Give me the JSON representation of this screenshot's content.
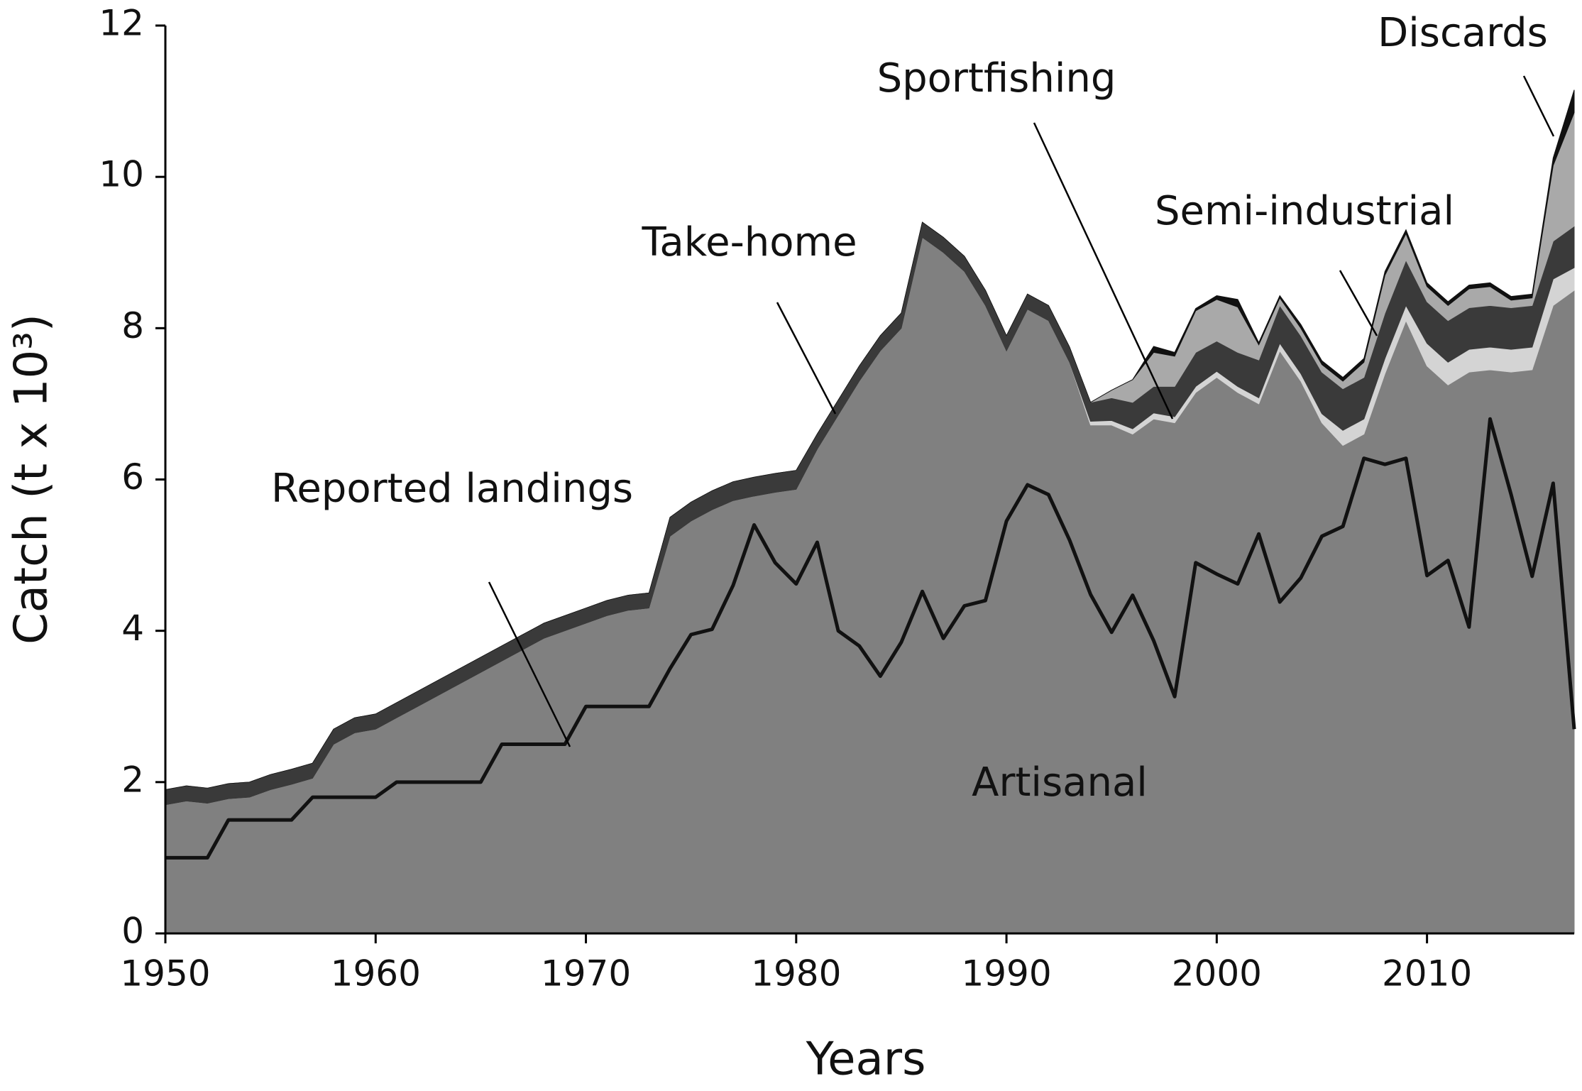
{
  "chart_data": {
    "type": "area",
    "stacked": true,
    "x_label": "Years",
    "y_label": "Catch (t x 10³)",
    "x": [
      1950,
      1951,
      1952,
      1953,
      1954,
      1955,
      1956,
      1957,
      1958,
      1959,
      1960,
      1961,
      1962,
      1963,
      1964,
      1965,
      1966,
      1967,
      1968,
      1969,
      1970,
      1971,
      1972,
      1973,
      1974,
      1975,
      1976,
      1977,
      1978,
      1979,
      1980,
      1981,
      1982,
      1983,
      1984,
      1985,
      1986,
      1987,
      1988,
      1989,
      1990,
      1991,
      1992,
      1993,
      1994,
      1995,
      1996,
      1997,
      1998,
      1999,
      2000,
      2001,
      2002,
      2003,
      2004,
      2005,
      2006,
      2007,
      2008,
      2009,
      2010,
      2011,
      2012,
      2013,
      2014,
      2015,
      2016,
      2017
    ],
    "xlim": [
      1950,
      2017
    ],
    "xticks": [
      1950,
      1960,
      1970,
      1980,
      1990,
      2000,
      2010
    ],
    "ylim": [
      0,
      12
    ],
    "yticks": [
      0,
      2,
      4,
      6,
      8,
      10,
      12
    ],
    "grid": false,
    "series": [
      {
        "name": "Artisanal",
        "color": "#808080",
        "values": [
          1.7,
          1.75,
          1.72,
          1.78,
          1.8,
          1.9,
          1.97,
          2.05,
          2.5,
          2.65,
          2.7,
          2.85,
          3.0,
          3.15,
          3.3,
          3.45,
          3.6,
          3.75,
          3.9,
          4.0,
          4.1,
          4.2,
          4.27,
          4.3,
          5.25,
          5.45,
          5.6,
          5.72,
          5.78,
          5.83,
          5.87,
          6.4,
          6.85,
          7.3,
          7.7,
          8.0,
          9.2,
          9.0,
          8.75,
          8.3,
          7.7,
          8.25,
          8.1,
          7.55,
          6.72,
          6.72,
          6.6,
          6.8,
          6.75,
          7.15,
          7.35,
          7.15,
          7.0,
          7.7,
          7.3,
          6.75,
          6.45,
          6.6,
          7.4,
          8.1,
          7.5,
          7.25,
          7.42,
          7.45,
          7.42,
          7.45,
          8.3,
          8.5
        ]
      },
      {
        "name": "Sportfishing",
        "color": "#d4d4d4",
        "values": [
          0,
          0,
          0,
          0,
          0,
          0,
          0,
          0,
          0,
          0,
          0,
          0,
          0,
          0,
          0,
          0,
          0,
          0,
          0,
          0,
          0,
          0,
          0,
          0,
          0,
          0,
          0,
          0,
          0,
          0,
          0,
          0,
          0,
          0,
          0,
          0,
          0,
          0,
          0,
          0,
          0,
          0,
          0,
          0,
          0.05,
          0.06,
          0.07,
          0.08,
          0.08,
          0.08,
          0.08,
          0.08,
          0.08,
          0.1,
          0.1,
          0.12,
          0.2,
          0.2,
          0.2,
          0.2,
          0.3,
          0.3,
          0.3,
          0.3,
          0.3,
          0.3,
          0.35,
          0.3
        ]
      },
      {
        "name": "Take-home",
        "color": "#3a3a3a",
        "values": [
          0.2,
          0.2,
          0.2,
          0.2,
          0.2,
          0.2,
          0.2,
          0.2,
          0.2,
          0.2,
          0.2,
          0.2,
          0.2,
          0.2,
          0.2,
          0.2,
          0.2,
          0.2,
          0.2,
          0.2,
          0.2,
          0.2,
          0.2,
          0.2,
          0.25,
          0.25,
          0.25,
          0.25,
          0.25,
          0.25,
          0.25,
          0.2,
          0.2,
          0.2,
          0.2,
          0.2,
          0.2,
          0.2,
          0.2,
          0.2,
          0.2,
          0.2,
          0.2,
          0.2,
          0.25,
          0.3,
          0.35,
          0.35,
          0.4,
          0.45,
          0.4,
          0.45,
          0.5,
          0.5,
          0.5,
          0.55,
          0.55,
          0.55,
          0.6,
          0.6,
          0.55,
          0.55,
          0.55,
          0.55,
          0.55,
          0.55,
          0.5,
          0.55
        ]
      },
      {
        "name": "Semi-industrial",
        "color": "#a9a9a9",
        "values": [
          0,
          0,
          0,
          0,
          0,
          0,
          0,
          0,
          0,
          0,
          0,
          0,
          0,
          0,
          0,
          0,
          0,
          0,
          0,
          0,
          0,
          0,
          0,
          0,
          0,
          0,
          0,
          0,
          0,
          0,
          0,
          0,
          0,
          0,
          0,
          0,
          0,
          0,
          0,
          0,
          0,
          0,
          0,
          0,
          0,
          0.1,
          0.3,
          0.45,
          0.4,
          0.55,
          0.55,
          0.6,
          0.2,
          0.1,
          0.1,
          0.1,
          0.1,
          0.2,
          0.5,
          0.35,
          0.2,
          0.2,
          0.25,
          0.25,
          0.1,
          0.1,
          1.0,
          1.5
        ]
      },
      {
        "name": "Discards",
        "color": "#111111",
        "values": [
          0,
          0,
          0,
          0,
          0,
          0,
          0,
          0,
          0,
          0,
          0,
          0,
          0,
          0,
          0,
          0,
          0,
          0,
          0,
          0,
          0,
          0,
          0,
          0,
          0,
          0,
          0,
          0,
          0,
          0,
          0,
          0,
          0,
          0,
          0,
          0,
          0,
          0,
          0,
          0,
          0,
          0,
          0,
          0,
          0,
          0,
          0,
          0.08,
          0.05,
          0.03,
          0.05,
          0.1,
          0.03,
          0.03,
          0.05,
          0.05,
          0.05,
          0.05,
          0.05,
          0.05,
          0.05,
          0.05,
          0.05,
          0.05,
          0.05,
          0.05,
          0.1,
          0.3
        ]
      }
    ],
    "lines": [
      {
        "name": "Reported landings",
        "color": "#111111",
        "values": [
          1.0,
          1.0,
          1.0,
          1.5,
          1.5,
          1.5,
          1.5,
          1.8,
          1.8,
          1.8,
          1.8,
          2.0,
          2.0,
          2.0,
          2.0,
          2.0,
          2.5,
          2.5,
          2.5,
          2.5,
          3.0,
          3.0,
          3.0,
          3.0,
          3.5,
          3.95,
          4.02,
          4.6,
          5.4,
          4.9,
          4.62,
          5.17,
          4.0,
          3.8,
          3.4,
          3.85,
          4.52,
          3.9,
          4.33,
          4.4,
          5.45,
          5.93,
          5.8,
          5.2,
          4.48,
          3.98,
          4.47,
          3.87,
          3.13,
          4.9,
          4.75,
          4.62,
          5.28,
          4.38,
          4.7,
          5.25,
          5.38,
          6.28,
          6.2,
          6.28,
          4.73,
          4.93,
          4.05,
          6.8,
          5.8,
          4.72,
          5.95,
          2.7
        ]
      }
    ]
  }
}
